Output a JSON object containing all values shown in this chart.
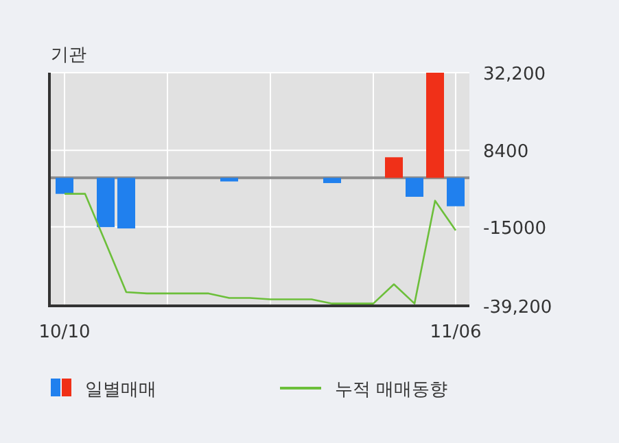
{
  "chart_data": {
    "type": "bar",
    "title": "기관",
    "categories": [
      "10/10",
      null,
      null,
      null,
      null,
      null,
      null,
      null,
      null,
      null,
      null,
      null,
      null,
      null,
      null,
      null,
      null,
      null,
      null,
      "11/06"
    ],
    "series": [
      {
        "name": "일별매매",
        "colors": [
          "#2080ee",
          null,
          "#2080ee",
          "#2080ee",
          null,
          null,
          null,
          null,
          "#2080ee",
          null,
          null,
          null,
          null,
          "#2080ee",
          null,
          null,
          "#f03018",
          "#2080ee",
          "#f03018",
          "#2080ee"
        ],
        "values": [
          -4900,
          0,
          -15100,
          -15500,
          0,
          0,
          0,
          0,
          -1100,
          0,
          0,
          0,
          0,
          -1600,
          0,
          0,
          6300,
          -5800,
          32200,
          -8700
        ]
      },
      {
        "name": "누적 매매동향",
        "type": "line",
        "color": "#6cbf3a",
        "values": [
          -4900,
          -4900,
          -19900,
          -35000,
          -35400,
          -35400,
          -35400,
          -35400,
          -36800,
          -36800,
          -37200,
          -37200,
          -37200,
          -38500,
          -38500,
          -38500,
          -32600,
          -38500,
          -7000,
          -16100
        ]
      }
    ],
    "ylim": [
      -39200,
      32200
    ],
    "yticks": [
      {
        "value": 32200,
        "label": "32,200"
      },
      8400,
      -15000,
      {
        "value": -39200,
        "label": "-39,200"
      }
    ],
    "ref_lines": [
      {
        "axis": "y",
        "value": 0,
        "label": null,
        "color": "#8c8c8c"
      }
    ],
    "grid": true,
    "legend": "bottom"
  }
}
